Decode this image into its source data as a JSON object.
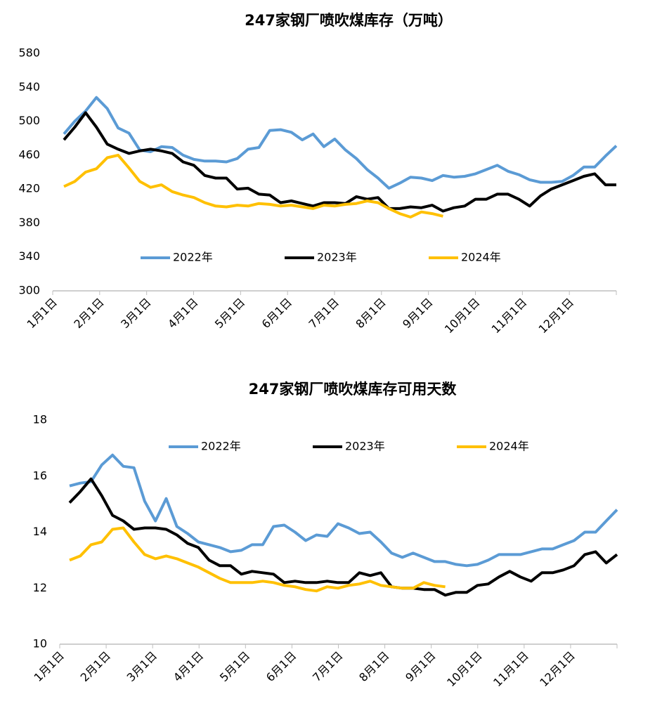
{
  "chart_data": [
    {
      "type": "line",
      "title": "247家钢厂喷吹煤库存（万吨）",
      "x_labels": [
        "1月1日",
        "2月1日",
        "3月1日",
        "4月1日",
        "5月1日",
        "6月1日",
        "7月1日",
        "8月1日",
        "9月1日",
        "10月1日",
        "11月1日",
        "12月1日"
      ],
      "ylim": [
        300,
        580
      ],
      "yticks": [
        300,
        340,
        380,
        420,
        460,
        500,
        540,
        580
      ],
      "series": [
        {
          "name": "2022年",
          "color": "#5b9bd5",
          "values": [
            485,
            500,
            512,
            528,
            515,
            492,
            486,
            466,
            464,
            470,
            469,
            460,
            455,
            453,
            453,
            452,
            456,
            467,
            469,
            489,
            490,
            487,
            478,
            485,
            470,
            479,
            466,
            456,
            443,
            433,
            421,
            427,
            434,
            433,
            430,
            436,
            434,
            435,
            438,
            443,
            448,
            441,
            437,
            431,
            428,
            428,
            429,
            436,
            446,
            446,
            459,
            471
          ]
        },
        {
          "name": "2023年",
          "color": "#000000",
          "values": [
            478,
            493,
            510,
            493,
            473,
            467,
            462,
            465,
            467,
            465,
            462,
            452,
            448,
            436,
            433,
            433,
            420,
            421,
            414,
            413,
            404,
            406,
            403,
            400,
            404,
            404,
            403,
            411,
            408,
            410,
            397,
            397,
            399,
            398,
            401,
            394,
            398,
            400,
            408,
            408,
            414,
            414,
            408,
            400,
            412,
            420,
            425,
            430,
            435,
            438,
            425,
            425
          ]
        },
        {
          "name": "2024年",
          "color": "#ffc000",
          "values": [
            423,
            429,
            440,
            444,
            457,
            460,
            445,
            429,
            422,
            425,
            417,
            413,
            410,
            404,
            400,
            399,
            401,
            400,
            403,
            402,
            400,
            401,
            399,
            397,
            401,
            400,
            402,
            403,
            406,
            404,
            397,
            391,
            387,
            393,
            391,
            388
          ]
        }
      ]
    },
    {
      "type": "line",
      "title": "247家钢厂喷吹煤库存可用天数",
      "x_labels": [
        "1月1日",
        "2月1日",
        "3月1日",
        "4月1日",
        "5月1日",
        "6月1日",
        "7月1日",
        "8月1日",
        "9月1日",
        "10月1日",
        "11月1日",
        "12月1日"
      ],
      "ylim": [
        10,
        18
      ],
      "yticks": [
        10,
        12,
        14,
        16,
        18
      ],
      "series": [
        {
          "name": "2022年",
          "color": "#5b9bd5",
          "values": [
            15.65,
            15.75,
            15.8,
            16.4,
            16.75,
            16.35,
            16.3,
            15.1,
            14.4,
            15.2,
            14.2,
            13.95,
            13.65,
            13.55,
            13.45,
            13.3,
            13.35,
            13.55,
            13.55,
            14.2,
            14.25,
            14.0,
            13.7,
            13.9,
            13.85,
            14.3,
            14.15,
            13.95,
            14.0,
            13.65,
            13.25,
            13.1,
            13.25,
            13.1,
            12.95,
            12.95,
            12.85,
            12.8,
            12.85,
            13.0,
            13.2,
            13.2,
            13.2,
            13.3,
            13.4,
            13.4,
            13.55,
            13.7,
            14.0,
            14.0,
            14.4,
            14.8
          ]
        },
        {
          "name": "2023年",
          "color": "#000000",
          "values": [
            15.05,
            15.45,
            15.9,
            15.3,
            14.6,
            14.4,
            14.1,
            14.15,
            14.15,
            14.1,
            13.9,
            13.6,
            13.45,
            13.0,
            12.8,
            12.8,
            12.5,
            12.6,
            12.55,
            12.5,
            12.2,
            12.25,
            12.2,
            12.2,
            12.25,
            12.2,
            12.2,
            12.55,
            12.45,
            12.55,
            12.05,
            12.0,
            12.0,
            11.95,
            11.95,
            11.75,
            11.85,
            11.85,
            12.1,
            12.15,
            12.4,
            12.6,
            12.4,
            12.25,
            12.55,
            12.55,
            12.65,
            12.8,
            13.2,
            13.3,
            12.9,
            13.2
          ]
        },
        {
          "name": "2024年",
          "color": "#ffc000",
          "values": [
            13.0,
            13.15,
            13.55,
            13.65,
            14.1,
            14.15,
            13.65,
            13.2,
            13.05,
            13.15,
            13.05,
            12.9,
            12.75,
            12.55,
            12.35,
            12.2,
            12.2,
            12.2,
            12.25,
            12.2,
            12.1,
            12.05,
            11.95,
            11.9,
            12.05,
            12.0,
            12.1,
            12.15,
            12.25,
            12.1,
            12.05,
            12.0,
            12.0,
            12.2,
            12.1,
            12.05
          ]
        }
      ]
    }
  ]
}
